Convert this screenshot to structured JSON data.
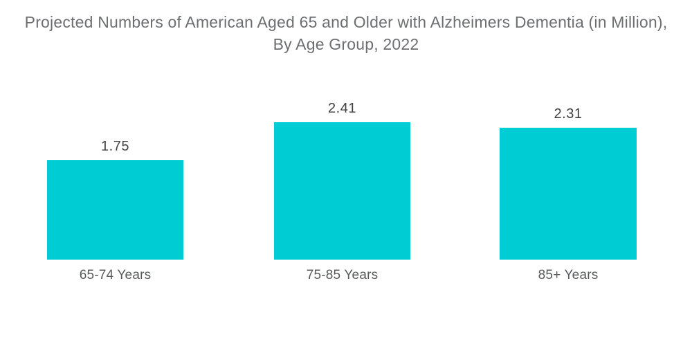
{
  "page": {
    "background_color": "#ffffff"
  },
  "chart_data": {
    "type": "bar",
    "title": "Projected Numbers of American Aged 65 and Older with Alzheimers Dementia (in Million), By Age Group, 2022",
    "title_line1": "Projected Numbers of American Aged 65 and Older with Alzheimers Dementia (in Million),",
    "title_line2": "By Age Group, 2022",
    "categories": [
      "65-74 Years",
      "75-85 Years",
      "85+ Years"
    ],
    "values": [
      1.75,
      2.41,
      2.31
    ],
    "value_labels": [
      "1.75",
      "2.41",
      "2.31"
    ],
    "unit": "Million",
    "xlabel": "",
    "ylabel": "",
    "ylim": [
      0,
      2.41
    ],
    "grid": false,
    "legend": false,
    "axes_visible": false,
    "bar_color": "#00CDD3",
    "title_color": "#6D6E71",
    "value_label_color": "#414042",
    "category_label_color": "#58595B"
  }
}
